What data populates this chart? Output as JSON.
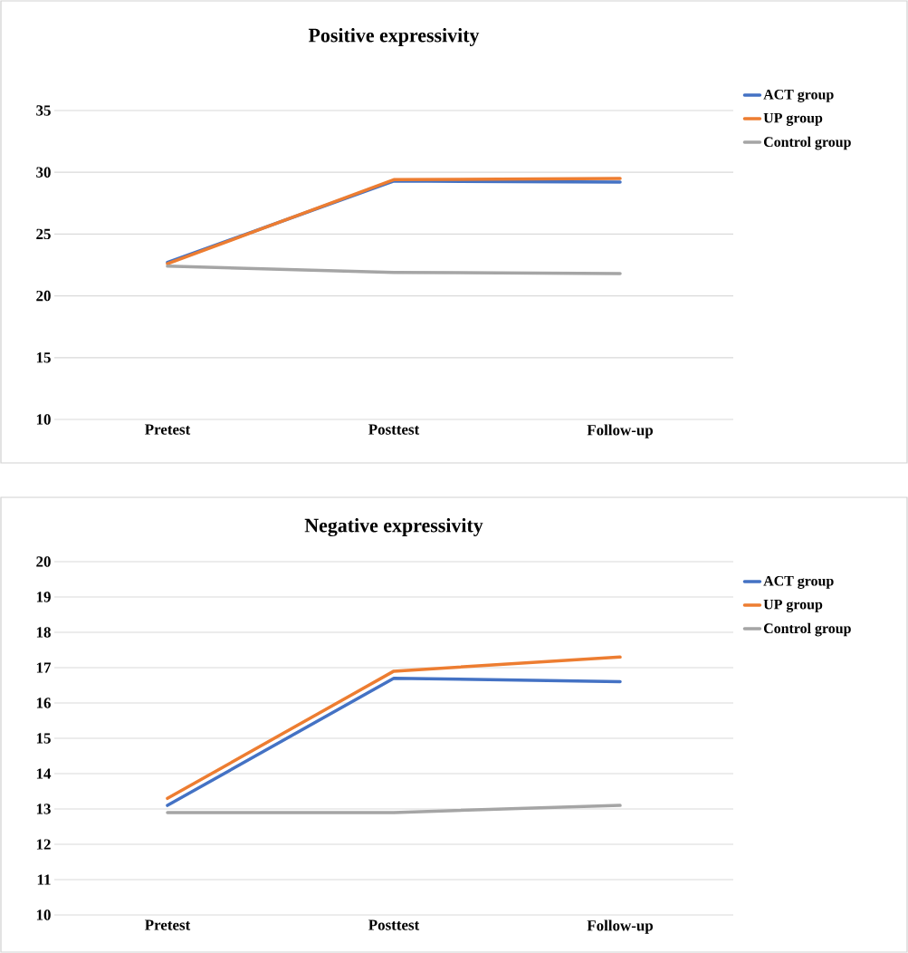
{
  "chart_data": [
    {
      "type": "line",
      "title": "Positive expressivity",
      "categories": [
        "Pretest",
        "Posttest",
        "Follow-up"
      ],
      "ylim": [
        10,
        35
      ],
      "yticks": [
        10,
        15,
        20,
        25,
        30,
        35
      ],
      "grid": "y",
      "legend": "right",
      "series": [
        {
          "name": "ACT group",
          "color": "#4472c4",
          "values": [
            22.7,
            29.3,
            29.2
          ]
        },
        {
          "name": "UP group",
          "color": "#ed7d31",
          "values": [
            22.6,
            29.4,
            29.5
          ]
        },
        {
          "name": "Control group",
          "color": "#a5a5a5",
          "values": [
            22.4,
            21.9,
            21.8
          ]
        }
      ]
    },
    {
      "type": "line",
      "title": "Negative expressivity",
      "categories": [
        "Pretest",
        "Posttest",
        "Follow-up"
      ],
      "ylim": [
        10,
        20
      ],
      "yticks": [
        10,
        11,
        12,
        13,
        14,
        15,
        16,
        17,
        18,
        19,
        20
      ],
      "grid": "y",
      "legend": "right",
      "series": [
        {
          "name": "ACT group",
          "color": "#4472c4",
          "values": [
            13.1,
            16.7,
            16.6
          ]
        },
        {
          "name": "UP group",
          "color": "#ed7d31",
          "values": [
            13.3,
            16.9,
            17.3
          ]
        },
        {
          "name": "Control group",
          "color": "#a5a5a5",
          "values": [
            12.9,
            12.9,
            13.1
          ]
        }
      ]
    }
  ]
}
